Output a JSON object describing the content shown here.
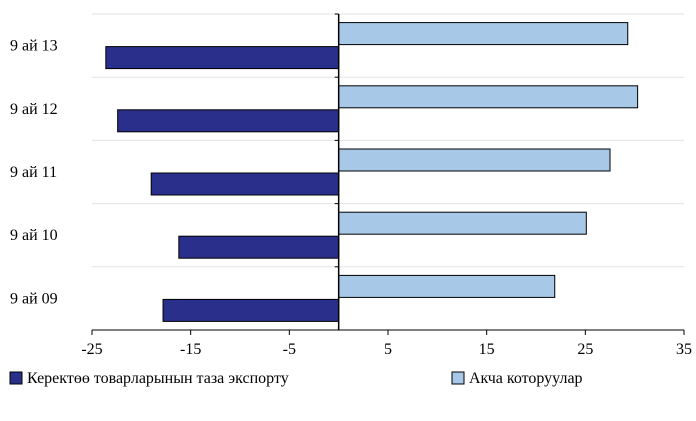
{
  "top_caption": "",
  "chart_data": {
    "type": "bar",
    "orientation": "horizontal",
    "title": "",
    "xlabel": "",
    "ylabel": "",
    "categories": [
      "9 ай 09",
      "9 ай 10",
      "9 ай 11",
      "9 ай 12",
      "9 ай 13"
    ],
    "series": [
      {
        "name": "Керектөө товарларынын таза экспорту",
        "color": "#2b2f8c",
        "values": [
          -17.8,
          -16.2,
          -19.0,
          -22.4,
          -23.6
        ]
      },
      {
        "name": "Акча которуулар",
        "color": "#a8c8e8",
        "values": [
          21.9,
          25.1,
          27.5,
          30.3,
          29.3
        ]
      }
    ],
    "xlim": [
      -25,
      35
    ],
    "xticks": [
      -25,
      -15,
      -5,
      5,
      15,
      25,
      35
    ],
    "xtick_labels": [
      "-25",
      "-15",
      "-5",
      "5",
      "15",
      "25",
      "35"
    ],
    "grid": true,
    "legend_position": "bottom"
  }
}
